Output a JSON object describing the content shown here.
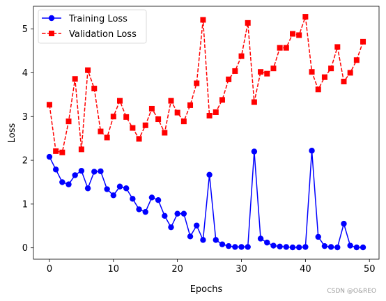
{
  "chart_data": {
    "type": "line",
    "title": "",
    "xlabel": "Epochs",
    "ylabel": "Loss",
    "xlim": [
      -2.5,
      51.5
    ],
    "ylim": [
      -0.26,
      5.52
    ],
    "xticks": [
      0,
      10,
      20,
      30,
      40,
      50
    ],
    "yticks": [
      0,
      1,
      2,
      3,
      4,
      5
    ],
    "grid": false,
    "legend_position": "top-left",
    "series": [
      {
        "name": "Training Loss",
        "color": "#0000ff",
        "marker": "circle",
        "linestyle": "solid",
        "x": [
          0,
          1,
          2,
          3,
          4,
          5,
          6,
          7,
          8,
          9,
          10,
          11,
          12,
          13,
          14,
          15,
          16,
          17,
          18,
          19,
          20,
          21,
          22,
          23,
          24,
          25,
          26,
          27,
          28,
          29,
          30,
          31,
          32,
          33,
          34,
          35,
          36,
          37,
          38,
          39,
          40,
          41,
          42,
          43,
          44,
          45,
          46,
          47,
          48,
          49
        ],
        "values": [
          2.08,
          1.79,
          1.5,
          1.45,
          1.66,
          1.76,
          1.36,
          1.74,
          1.75,
          1.34,
          1.2,
          1.4,
          1.36,
          1.12,
          0.88,
          0.82,
          1.15,
          1.09,
          0.73,
          0.47,
          0.78,
          0.78,
          0.26,
          0.51,
          0.18,
          1.67,
          0.18,
          0.08,
          0.04,
          0.02,
          0.02,
          0.02,
          2.2,
          0.21,
          0.12,
          0.05,
          0.03,
          0.02,
          0.01,
          0.01,
          0.02,
          2.22,
          0.25,
          0.04,
          0.02,
          0.01,
          0.55,
          0.05,
          0.01,
          0.01
        ]
      },
      {
        "name": "Validation Loss",
        "color": "#ff0000",
        "marker": "square",
        "linestyle": "dashed",
        "x": [
          0,
          1,
          2,
          3,
          4,
          5,
          6,
          7,
          8,
          9,
          10,
          11,
          12,
          13,
          14,
          15,
          16,
          17,
          18,
          19,
          20,
          21,
          22,
          23,
          24,
          25,
          26,
          27,
          28,
          29,
          30,
          31,
          32,
          33,
          34,
          35,
          36,
          37,
          38,
          39,
          40,
          41,
          42,
          43,
          44,
          45,
          46,
          47,
          48,
          49
        ],
        "values": [
          3.27,
          2.21,
          2.18,
          2.89,
          3.86,
          2.25,
          4.06,
          3.64,
          2.66,
          2.52,
          3.0,
          3.36,
          2.99,
          2.74,
          2.49,
          2.8,
          3.18,
          2.94,
          2.63,
          3.36,
          3.09,
          2.89,
          3.26,
          3.76,
          5.21,
          3.02,
          3.1,
          3.38,
          3.85,
          4.04,
          4.38,
          5.14,
          3.33,
          4.02,
          3.98,
          4.1,
          4.57,
          4.57,
          4.89,
          4.86,
          5.28,
          4.02,
          3.62,
          3.9,
          4.1,
          4.59,
          3.8,
          4.0,
          4.29,
          4.71
        ]
      }
    ]
  },
  "watermark": "CSDN @O&REO"
}
